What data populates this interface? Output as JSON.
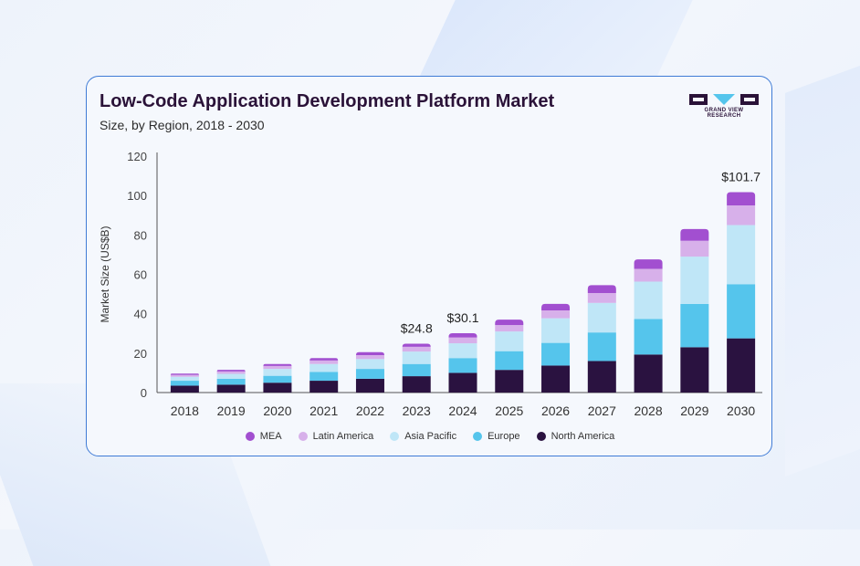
{
  "header": {
    "title": "Low-Code Application Development Platform Market",
    "subtitle": "Size, by Region, 2018 - 2030"
  },
  "logo": {
    "text": "GRAND VIEW RESEARCH",
    "color": "#2a1238"
  },
  "colors": {
    "MEA": "#a24fd0",
    "Latin America": "#d7b0ea",
    "Asia Pacific": "#bfe6f7",
    "Europe": "#55c5ec",
    "North America": "#2a1240"
  },
  "chart_data": {
    "type": "bar",
    "stacked": true,
    "title": "Low-Code Application Development Platform Market",
    "subtitle": "Size, by Region, 2018 - 2030",
    "xlabel": "",
    "ylabel": "Market Size (US$B)",
    "ylim": [
      0,
      120
    ],
    "yticks": [
      0,
      20,
      40,
      60,
      80,
      100,
      120
    ],
    "grid": false,
    "legend": "bottom",
    "categories": [
      "2018",
      "2019",
      "2020",
      "2021",
      "2022",
      "2023",
      "2024",
      "2025",
      "2026",
      "2027",
      "2028",
      "2029",
      "2030"
    ],
    "series": [
      {
        "name": "North America",
        "values": [
          3.5,
          4.0,
          5.0,
          6.0,
          7.0,
          8.3,
          10.0,
          11.5,
          13.7,
          16.0,
          19.3,
          23.0,
          27.5
        ]
      },
      {
        "name": "Europe",
        "values": [
          2.5,
          3.0,
          3.5,
          4.5,
          5.0,
          6.2,
          7.5,
          9.5,
          11.5,
          14.5,
          18.0,
          22.0,
          27.5
        ]
      },
      {
        "name": "Asia Pacific",
        "values": [
          2.0,
          2.5,
          3.5,
          4.0,
          5.0,
          6.3,
          7.5,
          10.0,
          12.5,
          15.0,
          19.0,
          24.0,
          30.0
        ]
      },
      {
        "name": "Latin America",
        "values": [
          1.0,
          1.2,
          1.5,
          1.8,
          2.0,
          2.4,
          3.0,
          3.2,
          4.0,
          5.0,
          6.5,
          8.0,
          10.0
        ]
      },
      {
        "name": "MEA",
        "values": [
          0.6,
          0.8,
          1.0,
          1.2,
          1.5,
          1.6,
          2.1,
          2.8,
          3.3,
          4.0,
          4.8,
          6.0,
          6.7
        ]
      }
    ],
    "annotations": [
      {
        "category": "2023",
        "label": "$24.8"
      },
      {
        "category": "2024",
        "label": "$30.1"
      },
      {
        "category": "2030",
        "label": "$101.7"
      }
    ]
  },
  "legend_order": [
    "MEA",
    "Latin America",
    "Asia Pacific",
    "Europe",
    "North America"
  ]
}
